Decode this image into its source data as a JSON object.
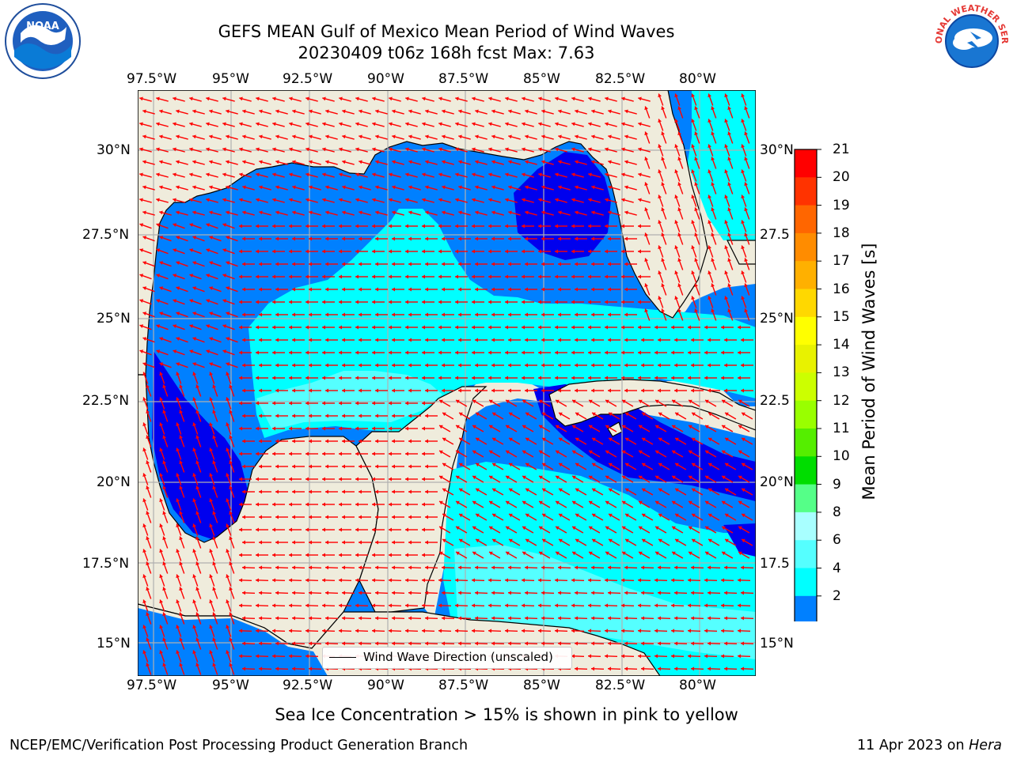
{
  "header": {
    "title_line1": "GEFS MEAN Gulf of Mexico Mean Period of Wind Waves",
    "title_line2": "20230409 t06z 168h fcst   Max: 7.63"
  },
  "logos": {
    "noara_text": "NOAA",
    "nws_text": "NATIONAL WEATHER SERVICE"
  },
  "map": {
    "x_ticks": [
      "97.5°W",
      "95°W",
      "92.5°W",
      "90°W",
      "87.5°W",
      "85°W",
      "82.5°W",
      "80°W"
    ],
    "y_ticks_left": [
      "30°N",
      "27.5°N",
      "25°N",
      "22.5°N",
      "20°N",
      "17.5°N",
      "15°N"
    ],
    "y_ticks_right": [
      "30°N",
      "27.5",
      "25°N",
      "22.5",
      "20°N",
      "17.5",
      "15°N"
    ],
    "land_color": "#efecdc",
    "grid_color": "#b0b0b0",
    "arrow_color": "#ff0000"
  },
  "colorbar": {
    "label": "Mean Period of Wind Waves [s]",
    "ticks": [
      "21",
      "20",
      "19",
      "18",
      "17",
      "16",
      "15",
      "14",
      "13",
      "12",
      "11",
      "10",
      "9",
      "8",
      "6",
      "4",
      "2"
    ],
    "colors": [
      "#ff0000",
      "#ff3300",
      "#ff6600",
      "#ff8c00",
      "#ffb000",
      "#ffd800",
      "#ffff00",
      "#e8f200",
      "#ccff00",
      "#99ff00",
      "#55ee00",
      "#00dd00",
      "#55ff88",
      "#a8ffff",
      "#55ffff",
      "#00ffff",
      "#0080ff"
    ],
    "under_color": "#0000ee"
  },
  "legend": {
    "label": "Wind Wave Direction (unscaled)"
  },
  "footer": {
    "caption": "Sea Ice Concentration > 15% is shown in pink to yellow",
    "left": "NCEP/EMC/Verification Post Processing Product Generation Branch",
    "right_date": "11 Apr 2023 on ",
    "right_host": "Hera"
  }
}
